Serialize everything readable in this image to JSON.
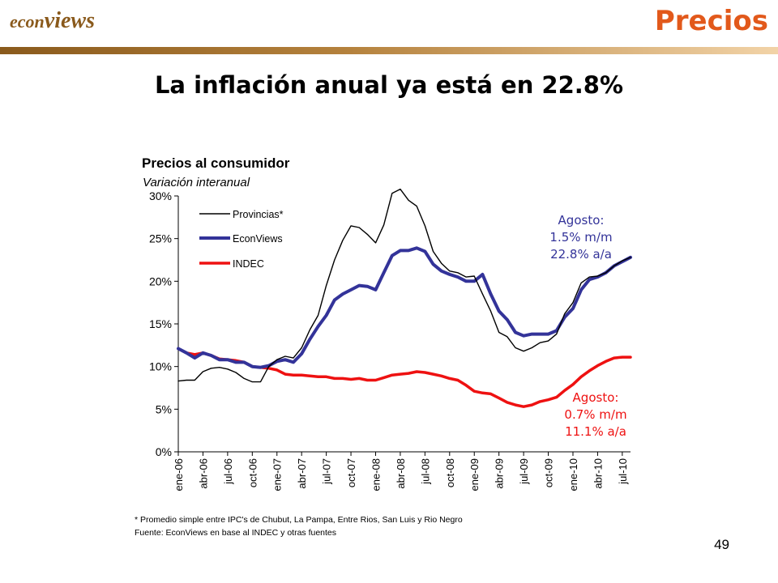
{
  "header": {
    "logo_prefix": "econ",
    "logo_suffix": "views",
    "section": "Precios",
    "brand_color": "#8a5a1c",
    "section_color": "#e2591b"
  },
  "slide_title": "La inflación anual ya está en 22.8%",
  "page_number": "49",
  "chart_data": {
    "type": "line",
    "title": "Precios al consumidor",
    "subtitle": "Variación interanual",
    "xlabel": "",
    "ylabel": "",
    "ylim": [
      0,
      30
    ],
    "y_ticks": [
      "0%",
      "5%",
      "10%",
      "15%",
      "20%",
      "25%",
      "30%"
    ],
    "x_ticks": [
      "ene-06",
      "abr-06",
      "jul-06",
      "oct-06",
      "ene-07",
      "abr-07",
      "jul-07",
      "oct-07",
      "ene-08",
      "abr-08",
      "jul-08",
      "oct-08",
      "ene-09",
      "abr-09",
      "jul-09",
      "oct-09",
      "ene-10",
      "abr-10",
      "jul-10"
    ],
    "grid": false,
    "legend_position": "top-left",
    "series": [
      {
        "name": "Provincias*",
        "color": "#000000",
        "values": [
          8.3,
          8.4,
          8.4,
          9.4,
          9.8,
          9.9,
          9.7,
          9.3,
          8.6,
          8.2,
          8.2,
          10.0,
          10.8,
          11.2,
          11.0,
          12.2,
          14.3,
          16.0,
          19.5,
          22.5,
          24.8,
          26.5,
          26.3,
          25.5,
          24.5,
          26.6,
          30.3,
          30.8,
          29.5,
          28.8,
          26.5,
          23.5,
          22.1,
          21.2,
          21.0,
          20.5,
          20.6,
          18.5,
          16.5,
          14.0,
          13.5,
          12.2,
          11.8,
          12.2,
          12.8,
          13.0,
          13.8,
          16.2,
          17.5,
          19.8,
          20.5,
          20.6,
          21.0,
          21.8,
          22.4,
          22.8
        ]
      },
      {
        "name": "EconViews",
        "color": "#333399",
        "values": [
          12.1,
          11.6,
          11.0,
          11.6,
          11.3,
          10.8,
          10.8,
          10.5,
          10.5,
          10.0,
          9.9,
          10.1,
          10.6,
          10.8,
          10.5,
          11.5,
          13.2,
          14.7,
          16.0,
          17.8,
          18.5,
          19.0,
          19.5,
          19.4,
          19.0,
          21.0,
          23.0,
          23.6,
          23.6,
          23.9,
          23.5,
          22.0,
          21.2,
          20.8,
          20.5,
          20.0,
          20.0,
          20.8,
          18.5,
          16.5,
          15.5,
          14.0,
          13.6,
          13.8,
          13.8,
          13.8,
          14.2,
          15.8,
          16.8,
          19.0,
          20.2,
          20.5,
          21.0,
          21.8,
          22.3,
          22.8
        ]
      },
      {
        "name": "INDEC",
        "color": "#ee1111",
        "values": [
          12.1,
          11.6,
          11.4,
          11.6,
          11.3,
          10.9,
          10.8,
          10.7,
          10.5,
          10.0,
          9.9,
          9.8,
          9.6,
          9.1,
          9.0,
          9.0,
          8.9,
          8.8,
          8.8,
          8.6,
          8.6,
          8.5,
          8.6,
          8.4,
          8.4,
          8.7,
          9.0,
          9.1,
          9.2,
          9.4,
          9.3,
          9.1,
          8.9,
          8.6,
          8.4,
          7.8,
          7.1,
          6.9,
          6.8,
          6.3,
          5.8,
          5.5,
          5.3,
          5.5,
          5.9,
          6.1,
          6.4,
          7.2,
          7.9,
          8.8,
          9.5,
          10.1,
          10.6,
          11.0,
          11.1,
          11.1
        ]
      }
    ],
    "annotations": [
      {
        "lines": [
          "Agosto:",
          "1.5% m/m",
          "22.8% a/a"
        ],
        "color": "#333399"
      },
      {
        "lines": [
          "Agosto:",
          "0.7% m/m",
          "11.1% a/a"
        ],
        "color": "#ee1111"
      }
    ]
  },
  "footnotes": [
    "* Promedio simple entre IPC's de Chubut, La Pampa, Entre Rios, San Luis y Rio Negro",
    "Fuente: EconViews en base al INDEC y otras fuentes"
  ]
}
